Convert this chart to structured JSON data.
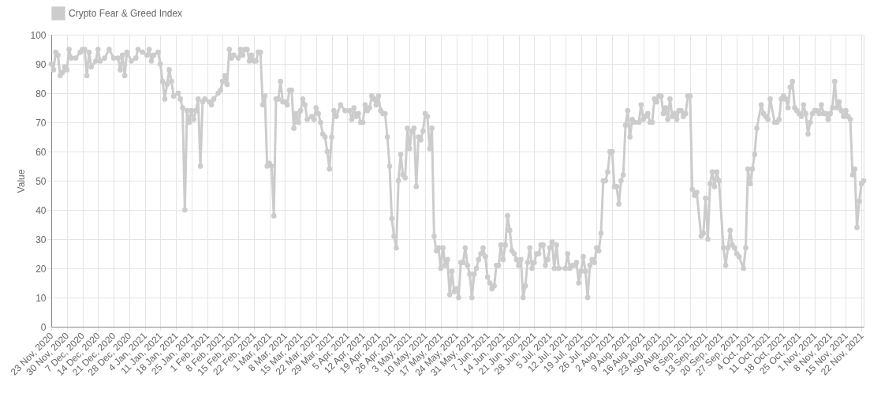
{
  "chart_data": {
    "type": "line",
    "ylabel": "Value",
    "legend": "top",
    "grid": true,
    "marker": "circle",
    "line_style": "solid",
    "ylim": [
      0,
      100
    ],
    "yticks": [
      0,
      10,
      20,
      30,
      40,
      50,
      60,
      70,
      80,
      90,
      100
    ],
    "xlim": [
      "2020-11-23",
      "2021-11-23"
    ],
    "xticks": [
      {
        "value": "2020-11-23",
        "label": "23 Nov, 2020"
      },
      {
        "value": "2020-11-30",
        "label": "30 Nov, 2020"
      },
      {
        "value": "2020-12-07",
        "label": "7 Dec, 2020"
      },
      {
        "value": "2020-12-14",
        "label": "14 Dec, 2020"
      },
      {
        "value": "2020-12-21",
        "label": "21 Dec, 2020"
      },
      {
        "value": "2020-12-28",
        "label": "28 Dec, 2020"
      },
      {
        "value": "2021-01-04",
        "label": "4 Jan, 2021"
      },
      {
        "value": "2021-01-11",
        "label": "11 Jan, 2021"
      },
      {
        "value": "2021-01-18",
        "label": "18 Jan, 2021"
      },
      {
        "value": "2021-01-25",
        "label": "25 Jan, 2021"
      },
      {
        "value": "2021-02-01",
        "label": "1 Feb, 2021"
      },
      {
        "value": "2021-02-08",
        "label": "8 Feb, 2021"
      },
      {
        "value": "2021-02-15",
        "label": "15 Feb, 2021"
      },
      {
        "value": "2021-02-22",
        "label": "22 Feb, 2021"
      },
      {
        "value": "2021-03-01",
        "label": "1 Mar, 2021"
      },
      {
        "value": "2021-03-08",
        "label": "8 Mar, 2021"
      },
      {
        "value": "2021-03-15",
        "label": "15 Mar, 2021"
      },
      {
        "value": "2021-03-22",
        "label": "22 Mar, 2021"
      },
      {
        "value": "2021-03-29",
        "label": "29 Mar, 2021"
      },
      {
        "value": "2021-04-05",
        "label": "5 Apr, 2021"
      },
      {
        "value": "2021-04-12",
        "label": "12 Apr, 2021"
      },
      {
        "value": "2021-04-19",
        "label": "19 Apr, 2021"
      },
      {
        "value": "2021-04-26",
        "label": "26 Apr, 2021"
      },
      {
        "value": "2021-05-03",
        "label": "3 May, 2021"
      },
      {
        "value": "2021-05-10",
        "label": "10 May, 2021"
      },
      {
        "value": "2021-05-17",
        "label": "17 May, 2021"
      },
      {
        "value": "2021-05-24",
        "label": "24 May, 2021"
      },
      {
        "value": "2021-05-31",
        "label": "31 May, 2021"
      },
      {
        "value": "2021-06-07",
        "label": "7 Jun, 2021"
      },
      {
        "value": "2021-06-14",
        "label": "14 Jun, 2021"
      },
      {
        "value": "2021-06-21",
        "label": "21 Jun, 2021"
      },
      {
        "value": "2021-06-28",
        "label": "28 Jun, 2021"
      },
      {
        "value": "2021-07-05",
        "label": "5 Jul, 2021"
      },
      {
        "value": "2021-07-12",
        "label": "12 Jul, 2021"
      },
      {
        "value": "2021-07-19",
        "label": "19 Jul, 2021"
      },
      {
        "value": "2021-07-26",
        "label": "26 Jul, 2021"
      },
      {
        "value": "2021-08-02",
        "label": "2 Aug, 2021"
      },
      {
        "value": "2021-08-09",
        "label": "9 Aug, 2021"
      },
      {
        "value": "2021-08-16",
        "label": "16 Aug, 2021"
      },
      {
        "value": "2021-08-23",
        "label": "23 Aug, 2021"
      },
      {
        "value": "2021-08-30",
        "label": "30 Aug, 2021"
      },
      {
        "value": "2021-09-06",
        "label": "6 Sep, 2021"
      },
      {
        "value": "2021-09-13",
        "label": "13 Sep, 2021"
      },
      {
        "value": "2021-09-20",
        "label": "20 Sep, 2021"
      },
      {
        "value": "2021-09-27",
        "label": "27 Sep, 2021"
      },
      {
        "value": "2021-10-04",
        "label": "4 Oct, 2021"
      },
      {
        "value": "2021-10-11",
        "label": "11 Oct, 2021"
      },
      {
        "value": "2021-10-18",
        "label": "18 Oct, 2021"
      },
      {
        "value": "2021-10-25",
        "label": "25 Oct, 2021"
      },
      {
        "value": "2021-11-01",
        "label": "1 Nov, 2021"
      },
      {
        "value": "2021-11-08",
        "label": "8 Nov, 2021"
      },
      {
        "value": "2021-11-15",
        "label": "15 Nov, 2021"
      },
      {
        "value": "2021-11-22",
        "label": "22 Nov, 2021"
      }
    ],
    "x": [
      "2020-11-23",
      "2020-11-24",
      "2020-11-25",
      "2020-11-26",
      "2020-11-27",
      "2020-11-28",
      "2020-11-29",
      "2020-11-30",
      "2020-12-01",
      "2020-12-02",
      "2020-12-04",
      "2020-12-06",
      "2020-12-07",
      "2020-12-08",
      "2020-12-09",
      "2020-12-10",
      "2020-12-11",
      "2020-12-13",
      "2020-12-14",
      "2020-12-15",
      "2020-12-17",
      "2020-12-19",
      "2020-12-21",
      "2020-12-23",
      "2020-12-24",
      "2020-12-25",
      "2020-12-26",
      "2020-12-27",
      "2020-12-29",
      "2020-12-31",
      "2021-01-01",
      "2021-01-03",
      "2021-01-05",
      "2021-01-06",
      "2021-01-07",
      "2021-01-08",
      "2021-01-10",
      "2021-01-11",
      "2021-01-12",
      "2021-01-13",
      "2021-01-14",
      "2021-01-15",
      "2021-01-16",
      "2021-01-17",
      "2021-01-19",
      "2021-01-20",
      "2021-01-21",
      "2021-01-22",
      "2021-01-23",
      "2021-01-24",
      "2021-01-25",
      "2021-01-26",
      "2021-01-27",
      "2021-01-28",
      "2021-01-29",
      "2021-01-30",
      "2021-01-31",
      "2021-02-02",
      "2021-02-03",
      "2021-02-04",
      "2021-02-06",
      "2021-02-07",
      "2021-02-08",
      "2021-02-09",
      "2021-02-10",
      "2021-02-11",
      "2021-02-12",
      "2021-02-13",
      "2021-02-15",
      "2021-02-16",
      "2021-02-17",
      "2021-02-18",
      "2021-02-19",
      "2021-02-20",
      "2021-02-21",
      "2021-02-22",
      "2021-02-23",
      "2021-02-24",
      "2021-02-25",
      "2021-02-26",
      "2021-02-27",
      "2021-02-28",
      "2021-03-01",
      "2021-03-02",
      "2021-03-03",
      "2021-03-04",
      "2021-03-05",
      "2021-03-06",
      "2021-03-07",
      "2021-03-08",
      "2021-03-09",
      "2021-03-10",
      "2021-03-11",
      "2021-03-12",
      "2021-03-13",
      "2021-03-14",
      "2021-03-15",
      "2021-03-16",
      "2021-03-17",
      "2021-03-18",
      "2021-03-20",
      "2021-03-21",
      "2021-03-22",
      "2021-03-23",
      "2021-03-24",
      "2021-03-25",
      "2021-03-26",
      "2021-03-27",
      "2021-03-28",
      "2021-03-29",
      "2021-03-30",
      "2021-03-31",
      "2021-04-02",
      "2021-04-04",
      "2021-04-06",
      "2021-04-07",
      "2021-04-08",
      "2021-04-09",
      "2021-04-10",
      "2021-04-11",
      "2021-04-12",
      "2021-04-13",
      "2021-04-14",
      "2021-04-15",
      "2021-04-16",
      "2021-04-17",
      "2021-04-18",
      "2021-04-19",
      "2021-04-20",
      "2021-04-21",
      "2021-04-22",
      "2021-04-23",
      "2021-04-24",
      "2021-04-25",
      "2021-04-26",
      "2021-04-27",
      "2021-04-28",
      "2021-04-29",
      "2021-04-30",
      "2021-05-01",
      "2021-05-02",
      "2021-05-03",
      "2021-05-04",
      "2021-05-05",
      "2021-05-06",
      "2021-05-07",
      "2021-05-08",
      "2021-05-09",
      "2021-05-10",
      "2021-05-11",
      "2021-05-12",
      "2021-05-13",
      "2021-05-14",
      "2021-05-15",
      "2021-05-16",
      "2021-05-17",
      "2021-05-18",
      "2021-05-19",
      "2021-05-20",
      "2021-05-21",
      "2021-05-22",
      "2021-05-23",
      "2021-05-24",
      "2021-05-25",
      "2021-05-26",
      "2021-05-27",
      "2021-05-28",
      "2021-05-29",
      "2021-05-30",
      "2021-05-31",
      "2021-06-01",
      "2021-06-02",
      "2021-06-03",
      "2021-06-04",
      "2021-06-05",
      "2021-06-06",
      "2021-06-07",
      "2021-06-08",
      "2021-06-09",
      "2021-06-10",
      "2021-06-11",
      "2021-06-12",
      "2021-06-13",
      "2021-06-14",
      "2021-06-15",
      "2021-06-16",
      "2021-06-17",
      "2021-06-18",
      "2021-06-19",
      "2021-06-20",
      "2021-06-21",
      "2021-06-22",
      "2021-06-23",
      "2021-06-24",
      "2021-06-25",
      "2021-06-26",
      "2021-06-27",
      "2021-06-28",
      "2021-06-29",
      "2021-06-30",
      "2021-07-01",
      "2021-07-02",
      "2021-07-03",
      "2021-07-04",
      "2021-07-05",
      "2021-07-06",
      "2021-07-07",
      "2021-07-08",
      "2021-07-09",
      "2021-07-12",
      "2021-07-13",
      "2021-07-14",
      "2021-07-15",
      "2021-07-16",
      "2021-07-17",
      "2021-07-18",
      "2021-07-19",
      "2021-07-20",
      "2021-07-21",
      "2021-07-22",
      "2021-07-23",
      "2021-07-24",
      "2021-07-25",
      "2021-07-26",
      "2021-07-27",
      "2021-07-28",
      "2021-07-29",
      "2021-07-30",
      "2021-07-31",
      "2021-08-01",
      "2021-08-02",
      "2021-08-03",
      "2021-08-04",
      "2021-08-05",
      "2021-08-06",
      "2021-08-07",
      "2021-08-08",
      "2021-08-09",
      "2021-08-10",
      "2021-08-11",
      "2021-08-12",
      "2021-08-14",
      "2021-08-15",
      "2021-08-16",
      "2021-08-17",
      "2021-08-18",
      "2021-08-19",
      "2021-08-20",
      "2021-08-21",
      "2021-08-22",
      "2021-08-23",
      "2021-08-24",
      "2021-08-25",
      "2021-08-26",
      "2021-08-27",
      "2021-08-28",
      "2021-08-29",
      "2021-08-30",
      "2021-08-31",
      "2021-09-01",
      "2021-09-02",
      "2021-09-03",
      "2021-09-04",
      "2021-09-05",
      "2021-09-06",
      "2021-09-07",
      "2021-09-08",
      "2021-09-09",
      "2021-09-11",
      "2021-09-12",
      "2021-09-13",
      "2021-09-14",
      "2021-09-15",
      "2021-09-16",
      "2021-09-17",
      "2021-09-18",
      "2021-09-19",
      "2021-09-21",
      "2021-09-22",
      "2021-09-23",
      "2021-09-24",
      "2021-09-25",
      "2021-09-26",
      "2021-09-27",
      "2021-09-28",
      "2021-09-30",
      "2021-10-01",
      "2021-10-02",
      "2021-10-03",
      "2021-10-04",
      "2021-10-05",
      "2021-10-06",
      "2021-10-08",
      "2021-10-09",
      "2021-10-10",
      "2021-10-11",
      "2021-10-12",
      "2021-10-14",
      "2021-10-15",
      "2021-10-16",
      "2021-10-17",
      "2021-10-18",
      "2021-10-19",
      "2021-10-20",
      "2021-10-21",
      "2021-10-22",
      "2021-10-23",
      "2021-10-24",
      "2021-10-25",
      "2021-10-26",
      "2021-10-27",
      "2021-10-28",
      "2021-10-29",
      "2021-10-30",
      "2021-10-31",
      "2021-11-01",
      "2021-11-02",
      "2021-11-03",
      "2021-11-04",
      "2021-11-05",
      "2021-11-06",
      "2021-11-07",
      "2021-11-08",
      "2021-11-09",
      "2021-11-10",
      "2021-11-11",
      "2021-11-12",
      "2021-11-13",
      "2021-11-14",
      "2021-11-15",
      "2021-11-16",
      "2021-11-17",
      "2021-11-18",
      "2021-11-19",
      "2021-11-20",
      "2021-11-21",
      "2021-11-22",
      "2021-11-23"
    ],
    "series": [
      {
        "name": "Crypto Fear & Greed Index",
        "color": "#cccccc",
        "values": [
          90,
          88,
          94,
          93,
          86,
          87,
          89,
          88,
          95,
          92,
          92,
          94,
          95,
          95,
          86,
          94,
          89,
          91,
          95,
          91,
          92,
          95,
          92,
          92,
          88,
          93,
          86,
          94,
          91,
          92,
          95,
          94,
          93,
          95,
          91,
          93,
          94,
          90,
          84,
          78,
          83,
          88,
          84,
          79,
          80,
          78,
          75,
          40,
          74,
          70,
          74,
          71,
          74,
          78,
          55,
          77,
          78,
          77,
          76,
          78,
          80,
          81,
          84,
          86,
          83,
          95,
          92,
          93,
          92,
          95,
          93,
          95,
          95,
          91,
          93,
          91,
          91,
          94,
          94,
          76,
          79,
          55,
          56,
          55,
          38,
          78,
          78,
          84,
          77,
          77,
          76,
          81,
          81,
          68,
          73,
          70,
          74,
          78,
          76,
          71,
          72,
          71,
          75,
          73,
          70,
          66,
          65,
          60,
          54,
          65,
          74,
          72,
          76,
          74,
          74,
          71,
          75,
          72,
          73,
          70,
          70,
          76,
          74,
          75,
          79,
          78,
          76,
          79,
          74,
          73,
          73,
          65,
          55,
          37,
          31,
          27,
          50,
          59,
          52,
          51,
          68,
          61,
          67,
          68,
          48,
          65,
          64,
          67,
          73,
          72,
          61,
          68,
          31,
          26,
          27,
          20,
          27,
          21,
          23,
          11,
          19,
          12,
          13,
          10,
          22,
          22,
          27,
          21,
          18,
          10,
          18,
          20,
          23,
          25,
          27,
          24,
          17,
          15,
          13,
          14,
          21,
          21,
          28,
          23,
          28,
          38,
          33,
          26,
          25,
          23,
          21,
          23,
          10,
          14,
          22,
          27,
          20,
          22,
          25,
          25,
          28,
          28,
          21,
          23,
          27,
          29,
          20,
          28,
          20,
          20,
          25,
          20,
          21,
          21,
          22,
          15,
          19,
          24,
          19,
          10,
          21,
          23,
          22,
          27,
          26,
          32,
          50,
          50,
          53,
          60,
          60,
          48,
          48,
          42,
          50,
          52,
          69,
          74,
          65,
          71,
          70,
          70,
          76,
          71,
          72,
          73,
          70,
          70,
          78,
          77,
          79,
          79,
          73,
          75,
          71,
          78,
          72,
          73,
          71,
          74,
          74,
          72,
          73,
          79,
          79,
          47,
          45,
          46,
          31,
          32,
          44,
          30,
          49,
          53,
          48,
          53,
          50,
          27,
          21,
          27,
          33,
          28,
          27,
          25,
          24,
          20,
          27,
          54,
          49,
          54,
          59,
          68,
          76,
          73,
          72,
          71,
          78,
          70,
          70,
          71,
          78,
          79,
          78,
          75,
          82,
          84,
          75,
          74,
          73,
          72,
          76,
          73,
          66,
          70,
          73,
          74,
          74,
          73,
          76,
          73,
          73,
          71,
          73,
          75,
          84,
          75,
          77,
          74,
          72,
          74,
          72,
          71,
          52,
          54,
          34,
          43,
          49,
          50
        ]
      }
    ]
  }
}
